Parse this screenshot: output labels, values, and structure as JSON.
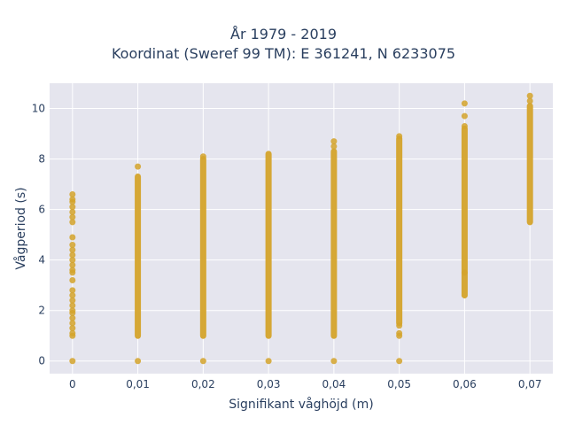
{
  "chart_data": {
    "type": "scatter",
    "title_lines": [
      "År 1979 - 2019",
      "Koordinat (Sweref 99 TM): E 361241, N 6233075"
    ],
    "xlabel": "Signifikant våghöjd (m)",
    "ylabel": "Vågperiod (s)",
    "xlim": [
      -0.0035,
      0.0735
    ],
    "ylim": [
      -0.5,
      11.0
    ],
    "x_ticks": [
      0,
      0.01,
      0.02,
      0.03,
      0.04,
      0.05,
      0.06,
      0.07
    ],
    "x_tick_labels": [
      "0",
      "0,01",
      "0,02",
      "0,03",
      "0,04",
      "0,05",
      "0,06",
      "0,07"
    ],
    "y_ticks": [
      0,
      2,
      4,
      6,
      8,
      10
    ],
    "y_tick_labels": [
      "0",
      "2",
      "4",
      "6",
      "8",
      "10"
    ],
    "grid": true,
    "marker_color": "#D4A32A",
    "plot_background": "#E5E5EE",
    "columns": [
      {
        "x": 0,
        "y_points": [
          0,
          1.0,
          1.1,
          1.3,
          1.5,
          1.7,
          1.9,
          2.0,
          2.2,
          2.4,
          2.6,
          2.8,
          3.2,
          3.5,
          3.6,
          3.8,
          4.0,
          4.2,
          4.4,
          4.6,
          4.9,
          5.5,
          5.7,
          5.9,
          6.1,
          6.3,
          6.4,
          6.6
        ]
      },
      {
        "x": 0.01,
        "y_points": [
          0,
          7.7
        ],
        "y_range": [
          1.0,
          7.3
        ]
      },
      {
        "x": 0.02,
        "y_points": [
          0,
          8.1
        ],
        "y_range": [
          1.0,
          8.0
        ]
      },
      {
        "x": 0.03,
        "y_points": [
          0
        ],
        "y_range": [
          1.0,
          8.2
        ]
      },
      {
        "x": 0.04,
        "y_points": [
          0,
          8.5,
          8.7
        ],
        "y_range": [
          1.0,
          8.3
        ]
      },
      {
        "x": 0.05,
        "y_points": [
          0,
          1.0,
          1.1,
          1.4,
          8.9
        ],
        "y_range": [
          1.5,
          8.8
        ]
      },
      {
        "x": 0.06,
        "y_points": [
          3.5,
          9.3,
          9.7,
          10.2
        ],
        "y_range": [
          2.6,
          9.2
        ]
      },
      {
        "x": 0.07,
        "y_points": [
          10.3,
          10.5
        ],
        "y_range": [
          5.5,
          10.1
        ]
      }
    ]
  }
}
